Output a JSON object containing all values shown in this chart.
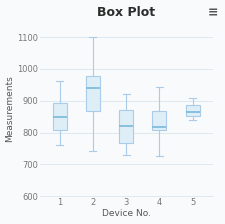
{
  "title": "Box Plot",
  "xlabel": "Device No.",
  "ylabel": "Measurements",
  "ylim": [
    600,
    1150
  ],
  "yticks": [
    600,
    700,
    800,
    900,
    1000,
    1100
  ],
  "xticks": [
    1,
    2,
    3,
    4,
    5
  ],
  "background_color": "#f9fafb",
  "box_facecolor": "#ddeef7",
  "box_edgecolor": "#aacce8",
  "median_color": "#7ab8d9",
  "whisker_color": "#aacce8",
  "cap_color": "#aacce8",
  "grid_color": "#dde8f0",
  "boxes": [
    {
      "x": 1,
      "whislo": 762,
      "q1": 808,
      "med": 850,
      "q3": 892,
      "whishi": 962
    },
    {
      "x": 2,
      "whislo": 742,
      "q1": 868,
      "med": 940,
      "q3": 978,
      "whishi": 1100
    },
    {
      "x": 3,
      "whislo": 730,
      "q1": 768,
      "med": 822,
      "q3": 872,
      "whishi": 920
    },
    {
      "x": 4,
      "whislo": 728,
      "q1": 808,
      "med": 818,
      "q3": 868,
      "whishi": 942
    },
    {
      "x": 5,
      "whislo": 838,
      "q1": 852,
      "med": 864,
      "q3": 888,
      "whishi": 910
    }
  ],
  "title_fontsize": 9,
  "label_fontsize": 6.5,
  "tick_fontsize": 6,
  "menu_fontsize": 9
}
